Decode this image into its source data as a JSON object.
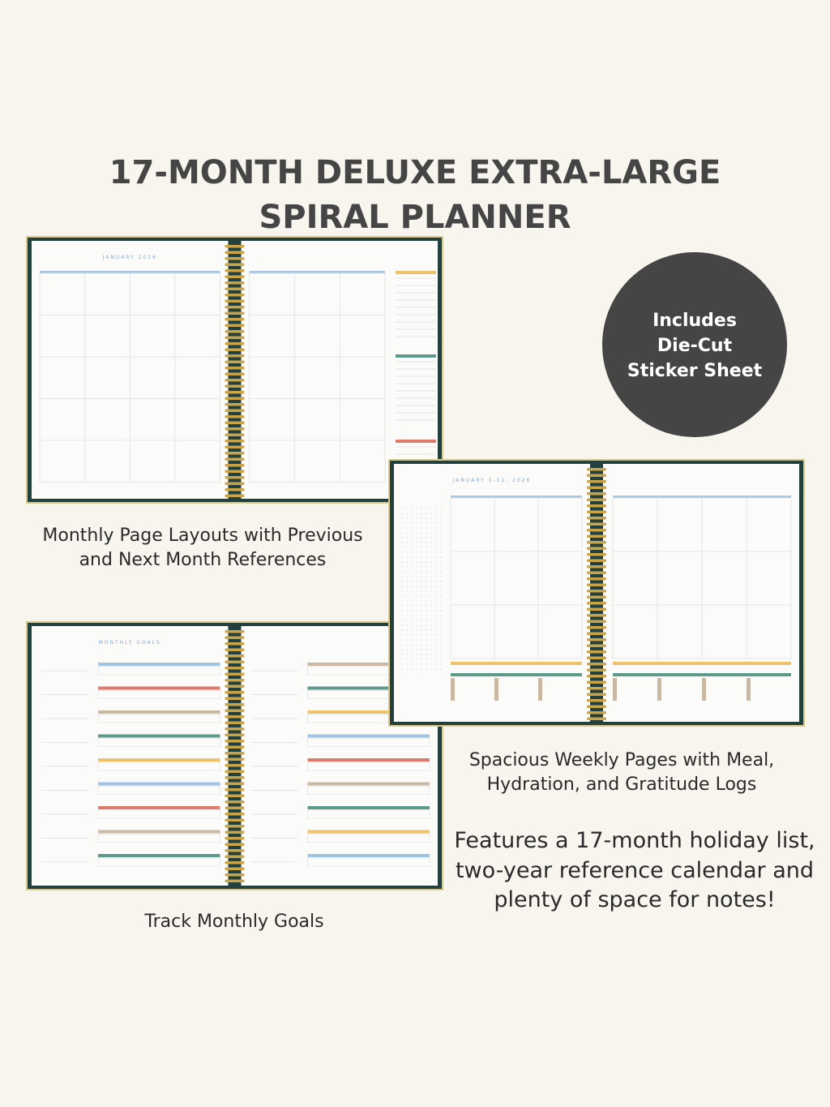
{
  "header": {
    "title_lines": [
      "17-MONTH DELUXE EXTRA-LARGE",
      "SPIRAL PLANNER"
    ]
  },
  "badge": {
    "lines": [
      "Includes",
      "Die-Cut",
      "Sticker Sheet"
    ]
  },
  "planners": [
    {
      "heading": "JANUARY 2026",
      "caption_lines": [
        "Monthly Page Layouts with Previous",
        "and Next Month References"
      ]
    },
    {
      "heading": "JANUARY 5-11, 2026",
      "caption_lines": [
        "Spacious Weekly Pages with Meal,",
        "Hydration, and Gratitude Logs"
      ]
    },
    {
      "heading": "MONTHLY GOALS",
      "caption_lines": [
        "Track Monthly Goals"
      ]
    }
  ],
  "features": {
    "lines": [
      "Features a 17-month holiday list,",
      "two-year reference calendar and",
      "plenty of space for notes!"
    ]
  }
}
